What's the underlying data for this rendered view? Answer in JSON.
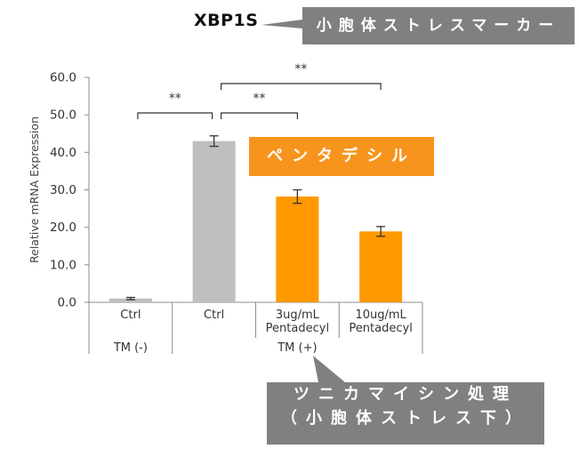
{
  "title": "XBP1S",
  "top_callout": "小胞体ストレスマーカー",
  "highlight_label": "ペンタデシル",
  "bottom_callout": {
    "line1": "ツニカマイシン処理",
    "line2": "（小胞体ストレス下）"
  },
  "colors": {
    "gray_bar": "#bfbfbf",
    "orange_bar": "#ff9900",
    "callout_gray": "#808080",
    "label_orange": "#f7941d"
  },
  "chart_data": {
    "type": "bar",
    "ylabel": "Relative mRNA Expression",
    "ylim": [
      0,
      60
    ],
    "yticks": [
      "0.0",
      "10.0",
      "20.0",
      "30.0",
      "40.0",
      "50.0",
      "60.0"
    ],
    "categories": [
      "Ctrl",
      "Ctrl",
      "3ug/mL\nPentadecyl",
      "10ug/mL\nPentadecyl"
    ],
    "values": [
      1.0,
      43.0,
      28.2,
      18.9
    ],
    "errors": [
      0.3,
      1.4,
      1.8,
      1.3
    ],
    "bar_colors": [
      "gray",
      "gray",
      "orange",
      "orange"
    ],
    "groups": [
      {
        "label": "TM (-)",
        "bars": [
          0
        ]
      },
      {
        "label": "TM (+)",
        "bars": [
          1,
          2,
          3
        ]
      }
    ],
    "significance": [
      {
        "from": 0,
        "to": 1,
        "label": "**"
      },
      {
        "from": 1,
        "to": 2,
        "label": "**"
      },
      {
        "from": 1,
        "to": 3,
        "label": "**"
      }
    ]
  }
}
